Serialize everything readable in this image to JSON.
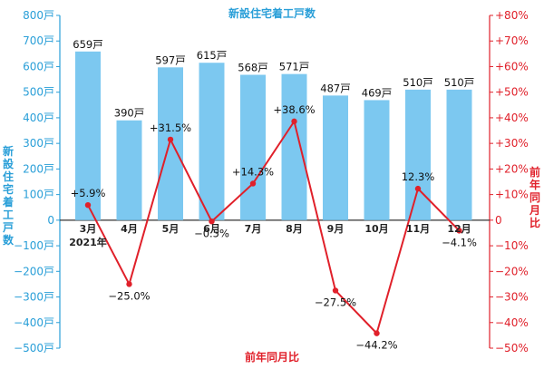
{
  "chart_data": {
    "type": "bar+line",
    "title": "新設住宅着工戸数",
    "categories": [
      "3月",
      "4月",
      "5月",
      "6月",
      "7月",
      "8月",
      "9月",
      "10月",
      "11月",
      "12月"
    ],
    "year_label": "2021年",
    "bars": {
      "values": [
        659,
        390,
        597,
        615,
        568,
        571,
        487,
        469,
        510,
        510
      ],
      "labels": [
        "659戸",
        "390戸",
        "597戸",
        "615戸",
        "568戸",
        "571戸",
        "487戸",
        "469戸",
        "510戸",
        "510戸"
      ],
      "color": "#7cc8f0"
    },
    "line": {
      "values": [
        5.9,
        -25.0,
        31.5,
        -0.5,
        14.3,
        38.6,
        -27.5,
        -44.2,
        12.3,
        -4.1
      ],
      "labels": [
        "+5.9%",
        "−25.0%",
        "+31.5%",
        "−0.5%",
        "+14.3%",
        "+38.6%",
        "−27.5%",
        "−44.2%",
        "12.3%",
        "−4.1%"
      ],
      "color": "#e0202a"
    },
    "left_axis": {
      "ylim": [
        -500,
        800
      ],
      "ticks": [
        800,
        700,
        600,
        500,
        400,
        300,
        200,
        100,
        0,
        -100,
        -200,
        -300,
        -400,
        -500
      ],
      "tick_labels": [
        "800戸",
        "700戸",
        "600戸",
        "500戸",
        "400戸",
        "300戸",
        "200戸",
        "100戸",
        "0",
        "−100戸",
        "−200戸",
        "−300戸",
        "−400戸",
        "−500戸"
      ],
      "title": "新設住宅着工戸数",
      "color": "#2a9fd8"
    },
    "right_axis": {
      "ylim": [
        -50,
        80
      ],
      "ticks": [
        80,
        70,
        60,
        50,
        40,
        30,
        20,
        10,
        0,
        -10,
        -20,
        -30,
        -40,
        -50
      ],
      "tick_labels": [
        "+80%",
        "+70%",
        "+60%",
        "+50%",
        "+40%",
        "+30%",
        "+20%",
        "+10%",
        "0",
        "−10%",
        "−20%",
        "−30%",
        "−40%",
        "−50%"
      ],
      "title": "前年同月比",
      "color": "#e0202a"
    },
    "xlabel": "前年同月比"
  }
}
